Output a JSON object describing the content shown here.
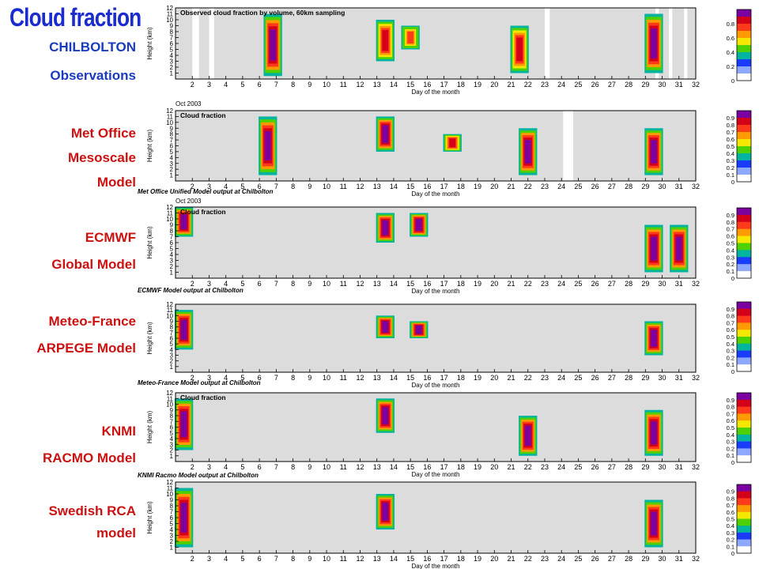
{
  "title": "Cloud fraction",
  "colors": {
    "title": "#1a2bd0",
    "site_label": "#1a3bc0",
    "model_label": "#cc1111",
    "background_fill": "#dcdcdc",
    "scale": [
      "#7b00a0",
      "#d4001a",
      "#ff3a1a",
      "#ff9a00",
      "#f5e800",
      "#4fd000",
      "#00b4a0",
      "#1a3cff",
      "#8fa8ff",
      "#ffffff"
    ]
  },
  "labels": [
    {
      "id": "chilbolton",
      "lines": [
        "CHILBOLTON"
      ],
      "color": "blue"
    },
    {
      "id": "observations",
      "lines": [
        "Observations"
      ],
      "color": "blue"
    },
    {
      "id": "met-office",
      "lines": [
        "Met Office",
        "Mesoscale",
        "Model"
      ],
      "color": "red"
    },
    {
      "id": "ecmwf",
      "lines": [
        "ECMWF",
        "Global Model"
      ],
      "color": "red"
    },
    {
      "id": "meteo-france",
      "lines": [
        "Meteo-France",
        "ARPEGE Model"
      ],
      "color": "red"
    },
    {
      "id": "knmi",
      "lines": [
        "KNMI",
        "RACMO Model"
      ],
      "color": "red"
    },
    {
      "id": "swedish",
      "lines": [
        "Swedish RCA",
        "model"
      ],
      "color": "red"
    }
  ],
  "chart_data": [
    {
      "type": "heatmap",
      "title": "Observed cloud fraction by volume, 60km sampling",
      "xlabel": "Day of the month",
      "ylabel": "Height (km)",
      "xlim": [
        1,
        32
      ],
      "ylim": [
        0,
        12
      ],
      "xticks": [
        "2",
        "3",
        "4",
        "5",
        "6",
        "7",
        "8",
        "9",
        "10",
        "11",
        "12",
        "13",
        "14",
        "15",
        "16",
        "17",
        "18",
        "19",
        "20",
        "21",
        "22",
        "23",
        "24",
        "25",
        "26",
        "27",
        "28",
        "29",
        "30",
        "31",
        "32"
      ],
      "yticks": [
        "1",
        "2",
        "3",
        "4",
        "5",
        "6",
        "7",
        "8",
        "9",
        "10",
        "11",
        "12"
      ],
      "colorbar_ticks": [
        "0",
        "0.2",
        "0.4",
        "0.6",
        "0.8"
      ],
      "caption_above": "",
      "caption_below": "",
      "gaps": [
        [
          2.0,
          2.4
        ],
        [
          3.0,
          3.3
        ],
        [
          23.0,
          23.3
        ],
        [
          29.6,
          29.8
        ],
        [
          30.4,
          30.6
        ],
        [
          31.3,
          31.5
        ]
      ],
      "cloud_features": [
        {
          "day": 6.8,
          "base_km": 0.5,
          "top_km": 11.0,
          "max_fraction": 1.0
        },
        {
          "day": 13.5,
          "base_km": 3.0,
          "top_km": 10.0,
          "max_fraction": 0.9
        },
        {
          "day": 15.0,
          "base_km": 5.0,
          "top_km": 9.0,
          "max_fraction": 0.8
        },
        {
          "day": 21.5,
          "base_km": 1.0,
          "top_km": 9.0,
          "max_fraction": 0.9
        },
        {
          "day": 29.5,
          "base_km": 1.0,
          "top_km": 11.0,
          "max_fraction": 1.0
        }
      ]
    },
    {
      "type": "heatmap",
      "title": "Cloud fraction",
      "xlabel": "Day of the month",
      "ylabel": "Height (km)",
      "xlim": [
        1,
        32
      ],
      "ylim": [
        0,
        12
      ],
      "xticks": [
        "2",
        "3",
        "4",
        "5",
        "6",
        "7",
        "8",
        "9",
        "10",
        "11",
        "12",
        "13",
        "14",
        "15",
        "16",
        "17",
        "18",
        "19",
        "20",
        "21",
        "22",
        "23",
        "24",
        "25",
        "26",
        "27",
        "28",
        "29",
        "30",
        "31",
        "32"
      ],
      "yticks": [
        "1",
        "2",
        "3",
        "4",
        "5",
        "6",
        "7",
        "8",
        "9",
        "10",
        "11",
        "12"
      ],
      "colorbar_ticks": [
        "0",
        "0.1",
        "0.2",
        "0.3",
        "0.4",
        "0.5",
        "0.6",
        "0.7",
        "0.8",
        "0.9"
      ],
      "caption_above": "Oct 2003",
      "caption_below": "Met Office Unified Model output at Chilbolton",
      "gaps": [
        [
          24.1,
          24.7
        ]
      ],
      "cloud_features": [
        {
          "day": 6.5,
          "base_km": 1.0,
          "top_km": 11.0,
          "max_fraction": 1.0
        },
        {
          "day": 13.5,
          "base_km": 5.0,
          "top_km": 11.0,
          "max_fraction": 1.0
        },
        {
          "day": 17.5,
          "base_km": 5.0,
          "top_km": 8.0,
          "max_fraction": 0.9
        },
        {
          "day": 22.0,
          "base_km": 1.0,
          "top_km": 9.0,
          "max_fraction": 1.0
        },
        {
          "day": 29.5,
          "base_km": 1.0,
          "top_km": 9.0,
          "max_fraction": 1.0
        }
      ]
    },
    {
      "type": "heatmap",
      "title": "Cloud fraction",
      "xlabel": "Day of the month",
      "ylabel": "Height (km)",
      "xlim": [
        1,
        32
      ],
      "ylim": [
        0,
        12
      ],
      "xticks": [
        "2",
        "3",
        "4",
        "5",
        "6",
        "7",
        "8",
        "9",
        "10",
        "11",
        "12",
        "13",
        "14",
        "15",
        "16",
        "17",
        "18",
        "19",
        "20",
        "21",
        "22",
        "23",
        "24",
        "25",
        "26",
        "27",
        "28",
        "29",
        "30",
        "31",
        "32"
      ],
      "yticks": [
        "1",
        "2",
        "3",
        "4",
        "5",
        "6",
        "7",
        "8",
        "9",
        "10",
        "11",
        "12"
      ],
      "colorbar_ticks": [
        "0",
        "0.1",
        "0.2",
        "0.3",
        "0.4",
        "0.5",
        "0.6",
        "0.7",
        "0.8",
        "0.9"
      ],
      "caption_above": "Oct 2003",
      "caption_below": "ECMWF Model output at Chilbolton",
      "gaps": [],
      "cloud_features": [
        {
          "day": 1.5,
          "base_km": 7.0,
          "top_km": 12.0,
          "max_fraction": 1.0
        },
        {
          "day": 13.5,
          "base_km": 6.0,
          "top_km": 11.0,
          "max_fraction": 1.0
        },
        {
          "day": 15.5,
          "base_km": 7.0,
          "top_km": 11.0,
          "max_fraction": 1.0
        },
        {
          "day": 29.5,
          "base_km": 1.0,
          "top_km": 9.0,
          "max_fraction": 1.0
        },
        {
          "day": 31.0,
          "base_km": 1.0,
          "top_km": 9.0,
          "max_fraction": 1.0
        }
      ]
    },
    {
      "type": "heatmap",
      "title": "",
      "xlabel": "Day of the month",
      "ylabel": "Height (km)",
      "xlim": [
        1,
        32
      ],
      "ylim": [
        0,
        12
      ],
      "xticks": [
        "2",
        "3",
        "4",
        "5",
        "6",
        "7",
        "8",
        "9",
        "10",
        "11",
        "12",
        "13",
        "14",
        "15",
        "16",
        "17",
        "18",
        "19",
        "20",
        "21",
        "22",
        "23",
        "24",
        "25",
        "26",
        "27",
        "28",
        "29",
        "30",
        "31",
        "32"
      ],
      "yticks": [
        "1",
        "2",
        "3",
        "4",
        "5",
        "6",
        "7",
        "8",
        "9",
        "10",
        "11",
        "12"
      ],
      "colorbar_ticks": [
        "0",
        "0.1",
        "0.2",
        "0.3",
        "0.4",
        "0.5",
        "0.6",
        "0.7",
        "0.8",
        "0.9"
      ],
      "caption_above": "",
      "caption_below": "Meteo-France Model output at Chilbolton",
      "gaps": [],
      "cloud_features": [
        {
          "day": 1.5,
          "base_km": 4.0,
          "top_km": 11.0,
          "max_fraction": 1.0
        },
        {
          "day": 13.5,
          "base_km": 6.0,
          "top_km": 10.0,
          "max_fraction": 1.0
        },
        {
          "day": 15.5,
          "base_km": 6.0,
          "top_km": 9.0,
          "max_fraction": 1.0
        },
        {
          "day": 29.5,
          "base_km": 3.0,
          "top_km": 9.0,
          "max_fraction": 1.0
        }
      ]
    },
    {
      "type": "heatmap",
      "title": "Cloud fraction",
      "xlabel": "Day of the month",
      "ylabel": "Height (km)",
      "xlim": [
        1,
        32
      ],
      "ylim": [
        0,
        12
      ],
      "xticks": [
        "2",
        "3",
        "4",
        "5",
        "6",
        "7",
        "8",
        "9",
        "10",
        "11",
        "12",
        "13",
        "14",
        "15",
        "16",
        "17",
        "18",
        "19",
        "20",
        "21",
        "22",
        "23",
        "24",
        "25",
        "26",
        "27",
        "28",
        "29",
        "30",
        "31",
        "32"
      ],
      "yticks": [
        "1",
        "2",
        "3",
        "4",
        "5",
        "6",
        "7",
        "8",
        "9",
        "10",
        "11",
        "12"
      ],
      "colorbar_ticks": [
        "0",
        "0.1",
        "0.2",
        "0.3",
        "0.4",
        "0.5",
        "0.6",
        "0.7",
        "0.8",
        "0.9"
      ],
      "caption_above": "",
      "caption_below": "KNMI Racmo Model output at Chilbolton",
      "gaps": [],
      "cloud_features": [
        {
          "day": 1.5,
          "base_km": 2.0,
          "top_km": 11.0,
          "max_fraction": 1.0
        },
        {
          "day": 13.5,
          "base_km": 5.0,
          "top_km": 11.0,
          "max_fraction": 1.0
        },
        {
          "day": 22.0,
          "base_km": 1.0,
          "top_km": 8.0,
          "max_fraction": 1.0
        },
        {
          "day": 29.5,
          "base_km": 1.0,
          "top_km": 9.0,
          "max_fraction": 1.0
        }
      ]
    },
    {
      "type": "heatmap",
      "title": "",
      "xlabel": "Day of the month",
      "ylabel": "Height (km)",
      "xlim": [
        1,
        32
      ],
      "ylim": [
        0,
        12
      ],
      "xticks": [
        "2",
        "3",
        "4",
        "5",
        "6",
        "7",
        "8",
        "9",
        "10",
        "11",
        "12",
        "13",
        "14",
        "15",
        "16",
        "17",
        "18",
        "19",
        "20",
        "21",
        "22",
        "23",
        "24",
        "25",
        "26",
        "27",
        "28",
        "29",
        "30",
        "31",
        "32"
      ],
      "yticks": [
        "1",
        "2",
        "3",
        "4",
        "5",
        "6",
        "7",
        "8",
        "9",
        "10",
        "11",
        "12"
      ],
      "colorbar_ticks": [
        "0",
        "0.1",
        "0.2",
        "0.3",
        "0.4",
        "0.5",
        "0.6",
        "0.7",
        "0.8",
        "0.9"
      ],
      "caption_above": "",
      "caption_below": "",
      "gaps": [],
      "cloud_features": [
        {
          "day": 1.5,
          "base_km": 1.0,
          "top_km": 11.0,
          "max_fraction": 1.0
        },
        {
          "day": 13.5,
          "base_km": 4.0,
          "top_km": 10.0,
          "max_fraction": 1.0
        },
        {
          "day": 29.5,
          "base_km": 1.0,
          "top_km": 9.0,
          "max_fraction": 1.0
        }
      ]
    }
  ]
}
